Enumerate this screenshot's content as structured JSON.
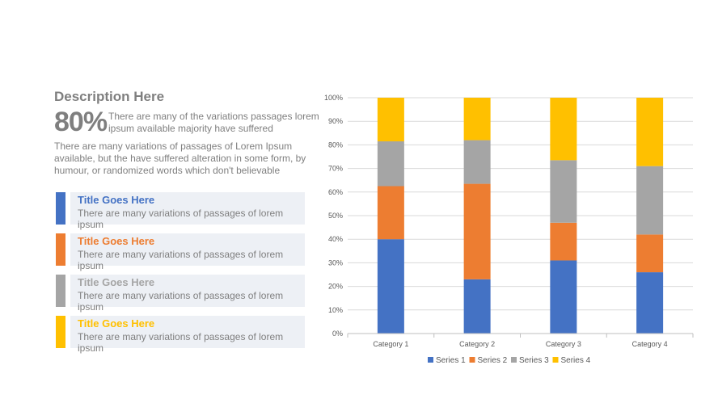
{
  "description": {
    "heading": "Description Here",
    "percent": "80%",
    "percent_text": "There are many of the variations passages lorem ipsum available majority have suffered",
    "paragraph": "There are many variations of passages  of Lorem Ipsum available, but the have suffered alteration in some  form, by humour, or randomized words which  don't believable"
  },
  "items": [
    {
      "title": "Title Goes Here",
      "text": "There are many variations of passages of lorem ipsum",
      "color": "#4472c4"
    },
    {
      "title": "Title Goes Here",
      "text": "There are many variations of passages of lorem ipsum",
      "color": "#ed7d31"
    },
    {
      "title": "Title Goes Here",
      "text": "There are many variations of passages of lorem ipsum",
      "color": "#a5a5a5"
    },
    {
      "title": "Title Goes Here",
      "text": "There are many variations of passages of lorem ipsum",
      "color": "#ffc000"
    }
  ],
  "chart_data": {
    "type": "bar",
    "stacked": "percent",
    "categories": [
      "Category 1",
      "Category 2",
      "Category 3",
      "Category 4"
    ],
    "series": [
      {
        "name": "Series 1",
        "color": "#4472c4",
        "values": [
          40,
          23,
          31,
          26
        ]
      },
      {
        "name": "Series 2",
        "color": "#ed7d31",
        "values": [
          22.5,
          40.5,
          16,
          16
        ]
      },
      {
        "name": "Series 3",
        "color": "#a5a5a5",
        "values": [
          19,
          18.5,
          26.5,
          29
        ]
      },
      {
        "name": "Series 4",
        "color": "#ffc000",
        "values": [
          18.5,
          18,
          26.5,
          29
        ]
      }
    ],
    "yticks": [
      "0%",
      "10%",
      "20%",
      "30%",
      "40%",
      "50%",
      "60%",
      "70%",
      "80%",
      "90%",
      "100%"
    ],
    "ylim": [
      0,
      100
    ],
    "grid": true,
    "legend": "bottom"
  }
}
